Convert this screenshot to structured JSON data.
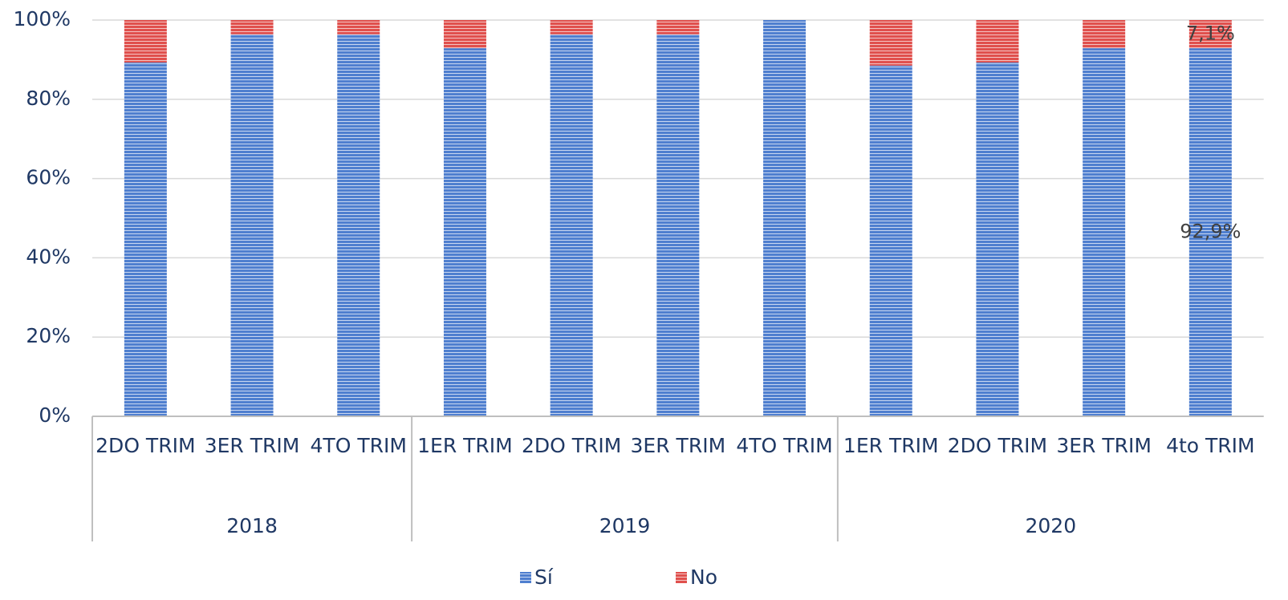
{
  "chart_data": {
    "type": "bar",
    "stacked": true,
    "groups": [
      {
        "name": "2018",
        "categories": [
          "2DO TRIM",
          "3ER TRIM",
          "4TO TRIM"
        ]
      },
      {
        "name": "2019",
        "categories": [
          "1ER TRIM",
          "2DO TRIM",
          "3ER TRIM",
          "4TO TRIM"
        ]
      },
      {
        "name": "2020",
        "categories": [
          "1ER TRIM",
          "2DO TRIM",
          "3ER TRIM",
          "4to TRIM"
        ]
      }
    ],
    "series": [
      {
        "name": "Sí",
        "color": "#4f7fcf",
        "values": [
          89.3,
          96.4,
          96.4,
          92.9,
          96.4,
          96.4,
          100,
          88.5,
          89.3,
          92.9,
          92.9
        ],
        "value_labels": [
          null,
          null,
          null,
          null,
          null,
          null,
          null,
          null,
          null,
          null,
          "92,9%"
        ]
      },
      {
        "name": "No",
        "color": "#e0504d",
        "values": [
          10.7,
          3.6,
          3.6,
          7.1,
          3.6,
          3.6,
          0,
          11.5,
          10.7,
          7.1,
          7.1
        ],
        "value_labels": [
          null,
          null,
          null,
          null,
          null,
          null,
          null,
          null,
          null,
          null,
          "7,1%"
        ]
      }
    ],
    "ylim": [
      0,
      100
    ],
    "yticks": [
      {
        "value": 0,
        "label": "0%"
      },
      {
        "value": 20,
        "label": "20%"
      },
      {
        "value": 40,
        "label": "40%"
      },
      {
        "value": 60,
        "label": "60%"
      },
      {
        "value": 80,
        "label": "80%"
      },
      {
        "value": 100,
        "label": "100%"
      }
    ],
    "grid": true,
    "legend": "bottom"
  }
}
